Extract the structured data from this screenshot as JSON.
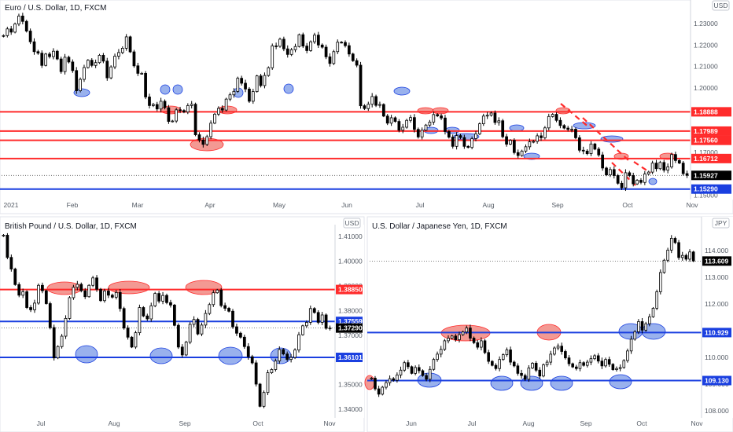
{
  "colors": {
    "up": "#ffffff",
    "down": "#000000",
    "red_line": "#ff2b2b",
    "blue_line": "#1a3fe0",
    "red_zone": "#f08078",
    "blue_zone": "#7f9ee8",
    "price_tag": "#000000"
  },
  "chart_data": [
    {
      "id": "eurusd",
      "type": "candlestick",
      "title": "Euro / U.S. Dollar, 1D, FXCM",
      "currency": "USD",
      "x_ticks": [
        "2021",
        "Feb",
        "Mar",
        "Apr",
        "May",
        "Jun",
        "Jul",
        "Aug",
        "Sep",
        "Oct",
        "Nov"
      ],
      "y_ticks": [
        "1.23000",
        "1.22000",
        "1.21000",
        "1.20000",
        "1.19000",
        "1.18000",
        "1.17000",
        "1.16000",
        "1.15000"
      ],
      "ylim": [
        1.1495,
        1.2395
      ],
      "last_price": "1.15927",
      "levels": [
        {
          "label": "1.18888",
          "value": 1.18888,
          "kind": "red"
        },
        {
          "label": "1.17989",
          "value": 1.17989,
          "kind": "red"
        },
        {
          "label": "1.17560",
          "value": 1.1756,
          "kind": "red"
        },
        {
          "label": "1.16712",
          "value": 1.16712,
          "kind": "red"
        },
        {
          "label": "1.15290",
          "value": 1.1529,
          "kind": "blue"
        }
      ],
      "series": [
        1.2244,
        1.2275,
        1.226,
        1.2298,
        1.2335,
        1.231,
        1.2265,
        1.2215,
        1.2169,
        1.2162,
        1.2105,
        1.2158,
        1.2146,
        1.2171,
        1.2135,
        1.2076,
        1.2143,
        1.2121,
        1.2081,
        1.1987,
        1.204,
        1.2095,
        1.2129,
        1.2105,
        1.2118,
        1.2152,
        1.2125,
        1.2047,
        1.2098,
        1.2148,
        1.2165,
        1.2185,
        1.2238,
        1.2168,
        1.2103,
        1.2068,
        1.2068,
        1.1958,
        1.1918,
        1.1923,
        1.1902,
        1.1938,
        1.1908,
        1.1844,
        1.1846,
        1.1898,
        1.1895,
        1.1888,
        1.1918,
        1.1924,
        1.1782,
        1.1757,
        1.1737,
        1.1773,
        1.1836,
        1.1878,
        1.1905,
        1.1897,
        1.1948,
        1.1968,
        1.1984,
        1.2045,
        1.2022,
        1.1995,
        1.1938,
        1.1983,
        1.2056,
        1.2011,
        1.2058,
        1.2094,
        1.2196,
        1.2194,
        1.2227,
        1.2182,
        1.2156,
        1.2178,
        1.2193,
        1.2248,
        1.2195,
        1.2174,
        1.2215,
        1.2246,
        1.22,
        1.219,
        1.2145,
        1.2114,
        1.2169,
        1.2213,
        1.2212,
        1.2197,
        1.2158,
        1.2127,
        1.2106,
        1.1917,
        1.1904,
        1.1924,
        1.196,
        1.1919,
        1.1923,
        1.1869,
        1.1836,
        1.1861,
        1.1844,
        1.1803,
        1.1817,
        1.1849,
        1.1862,
        1.1807,
        1.1772,
        1.1803,
        1.1827,
        1.1841,
        1.1876,
        1.187,
        1.186,
        1.1797,
        1.1771,
        1.1728,
        1.1778,
        1.1769,
        1.1728,
        1.1723,
        1.1764,
        1.1786,
        1.1833,
        1.1869,
        1.1873,
        1.1883,
        1.1839,
        1.1847,
        1.1773,
        1.1738,
        1.1756,
        1.1699,
        1.1685,
        1.1706,
        1.1726,
        1.1749,
        1.1751,
        1.1777,
        1.1768,
        1.1814,
        1.1867,
        1.1877,
        1.1849,
        1.1825,
        1.1813,
        1.1807,
        1.1808,
        1.1768,
        1.171,
        1.1706,
        1.1694,
        1.1739,
        1.1715,
        1.1688,
        1.1627,
        1.1595,
        1.162,
        1.1592,
        1.1556,
        1.1535,
        1.1605,
        1.1592,
        1.1553,
        1.157,
        1.156,
        1.1599,
        1.1608,
        1.165,
        1.1624,
        1.1653,
        1.1617,
        1.1632,
        1.169,
        1.1662,
        1.165,
        1.1601,
        1.1593
      ]
    },
    {
      "id": "gbpusd",
      "type": "candlestick",
      "title": "British Pound / U.S. Dollar, 1D, FXCM",
      "currency": "USD",
      "x_ticks": [
        "Jul",
        "Aug",
        "Sep",
        "Oct",
        "Nov"
      ],
      "y_ticks": [
        "1.41000",
        "1.40000",
        "1.39000",
        "1.38000",
        "1.37000",
        "1.36000",
        "1.35000",
        "1.34000"
      ],
      "ylim": [
        1.3378,
        1.4135
      ],
      "last_price": "1.37290",
      "levels": [
        {
          "label": "1.38850",
          "value": 1.3885,
          "kind": "red"
        },
        {
          "label": "1.37559",
          "value": 1.37559,
          "kind": "blue"
        },
        {
          "label": "1.36101",
          "value": 1.36101,
          "kind": "blue"
        }
      ],
      "series": [
        1.4105,
        1.4015,
        1.3968,
        1.3905,
        1.3862,
        1.3876,
        1.3812,
        1.3803,
        1.383,
        1.3902,
        1.388,
        1.3828,
        1.3731,
        1.3608,
        1.3654,
        1.3696,
        1.3768,
        1.3852,
        1.3894,
        1.3906,
        1.388,
        1.3856,
        1.3902,
        1.3932,
        1.3886,
        1.384,
        1.3879,
        1.3862,
        1.3854,
        1.3873,
        1.3808,
        1.3729,
        1.3692,
        1.3652,
        1.371,
        1.3812,
        1.3778,
        1.3766,
        1.3819,
        1.3869,
        1.3838,
        1.3861,
        1.3832,
        1.3822,
        1.374,
        1.3652,
        1.362,
        1.3672,
        1.3744,
        1.3764,
        1.3705,
        1.3741,
        1.3788,
        1.3824,
        1.3872,
        1.3883,
        1.382,
        1.3809,
        1.3797,
        1.3734,
        1.3708,
        1.3692,
        1.3654,
        1.3613,
        1.3588,
        1.3502,
        1.3412,
        1.3468,
        1.3548,
        1.3561,
        1.3596,
        1.3642,
        1.3624,
        1.3602,
        1.361,
        1.364,
        1.3702,
        1.3738,
        1.3752,
        1.3808,
        1.3792,
        1.3752,
        1.3782,
        1.3728,
        1.3729
      ]
    },
    {
      "id": "usdjpy",
      "type": "candlestick",
      "title": "U.S. Dollar / Japanese Yen, 1D, FXCM",
      "currency": "JPY",
      "x_ticks": [
        "Jun",
        "Jul",
        "Aug",
        "Sep",
        "Oct",
        "Nov"
      ],
      "y_ticks": [
        "114.000",
        "113.000",
        "112.000",
        "111.000",
        "110.000",
        "109.000",
        "108.000"
      ],
      "ylim": [
        107.85,
        115.15
      ],
      "last_price": "113.609",
      "levels": [
        {
          "label": "110.929",
          "value": 110.929,
          "kind": "blue"
        },
        {
          "label": "109.130",
          "value": 109.13,
          "kind": "blue"
        }
      ],
      "series": [
        109.22,
        108.82,
        108.62,
        108.88,
        109.05,
        109.2,
        109.14,
        109.34,
        109.52,
        109.8,
        109.65,
        109.4,
        109.62,
        109.5,
        109.32,
        109.18,
        109.55,
        109.92,
        110.12,
        110.3,
        110.62,
        110.72,
        110.8,
        110.66,
        110.85,
        110.95,
        111.1,
        110.72,
        110.55,
        110.38,
        110.62,
        110.18,
        109.85,
        109.7,
        109.58,
        109.92,
        110.1,
        110.28,
        109.82,
        109.68,
        109.4,
        109.32,
        109.18,
        109.6,
        109.78,
        109.52,
        109.3,
        109.72,
        109.82,
        110.12,
        110.35,
        110.42,
        110.22,
        109.98,
        109.76,
        109.64,
        109.58,
        109.8,
        109.7,
        109.82,
        109.95,
        110.06,
        109.86,
        109.68,
        109.92,
        109.74,
        109.54,
        109.58,
        109.62,
        109.88,
        110.24,
        110.68,
        110.96,
        111.34,
        111.02,
        111.26,
        111.52,
        111.84,
        112.46,
        113.18,
        113.64,
        114.02,
        114.46,
        114.3,
        113.74,
        113.82,
        113.68,
        113.95,
        113.61
      ]
    }
  ]
}
